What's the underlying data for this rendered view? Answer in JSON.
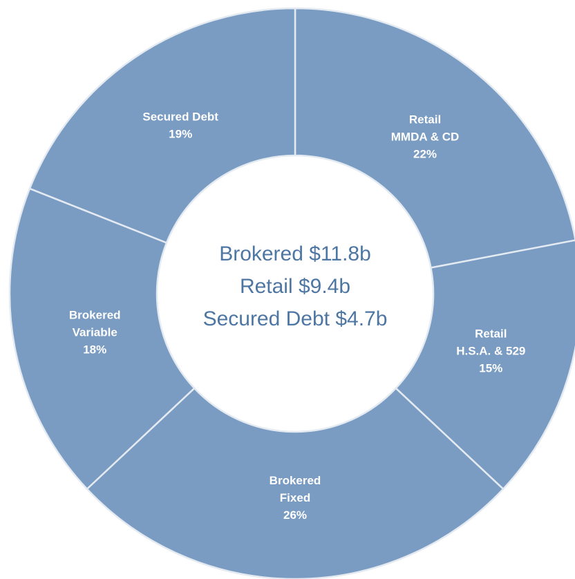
{
  "chart_data": {
    "type": "donut",
    "categories": [
      [
        "Retail",
        "MMDA & CD"
      ],
      [
        "Retail",
        "H.S.A. & 529"
      ],
      [
        "Brokered",
        "Fixed"
      ],
      [
        "Brokered",
        "Variable"
      ],
      [
        "Secured Debt"
      ]
    ],
    "values": [
      22,
      15,
      26,
      18,
      19
    ],
    "value_labels": [
      "22%",
      "15%",
      "26%",
      "18%",
      "19%"
    ],
    "color": "#7a9cc2",
    "center_text": [
      "Brokered $11.8b",
      "Retail $9.4b",
      "Secured Debt $4.7b"
    ]
  }
}
